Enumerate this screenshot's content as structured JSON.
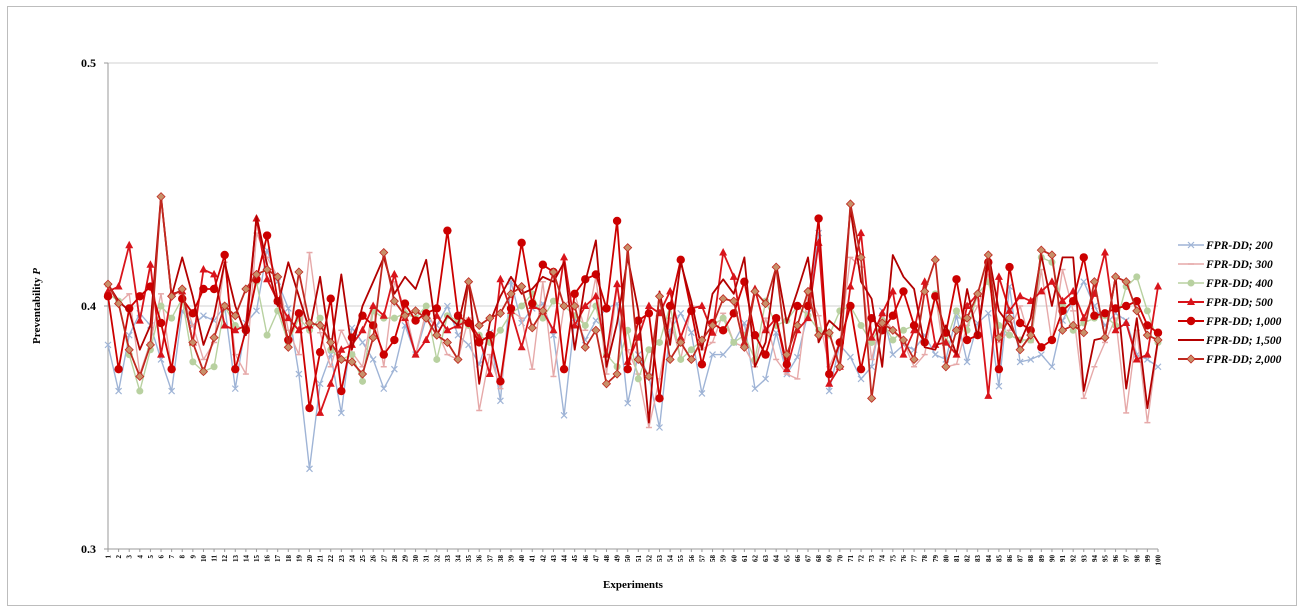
{
  "chart_data": {
    "type": "line",
    "title": "",
    "xlabel": "Experiments",
    "ylabel": "Preventability",
    "ylabel_italic_symbol": "P",
    "ylim": [
      0.3,
      0.5
    ],
    "yticks": [
      "0.3",
      "0.4",
      "0.5"
    ],
    "grid": "horizontal at 0.4 and 0.5",
    "legend_position": "right",
    "x": [
      1,
      2,
      3,
      4,
      5,
      6,
      7,
      8,
      9,
      10,
      11,
      12,
      13,
      14,
      15,
      16,
      17,
      18,
      19,
      20,
      21,
      22,
      23,
      24,
      25,
      26,
      27,
      28,
      29,
      30,
      31,
      32,
      33,
      34,
      35,
      36,
      37,
      38,
      39,
      40,
      41,
      42,
      43,
      44,
      45,
      46,
      47,
      48,
      49,
      50,
      51,
      52,
      53,
      54,
      55,
      56,
      57,
      58,
      59,
      60,
      61,
      62,
      63,
      64,
      65,
      66,
      67,
      68,
      69,
      70,
      71,
      72,
      73,
      74,
      75,
      76,
      77,
      78,
      79,
      80,
      81,
      82,
      83,
      84,
      85,
      86,
      87,
      88,
      89,
      90,
      91,
      92,
      93,
      94,
      95,
      96,
      97,
      98,
      99,
      100
    ],
    "series": [
      {
        "name": "FPR-DD; 200",
        "color": "#9fb4d6",
        "marker": "x",
        "values": [
          0.384,
          0.365,
          0.388,
          0.397,
          0.392,
          0.378,
          0.365,
          0.398,
          0.392,
          0.396,
          0.394,
          0.4,
          0.366,
          0.393,
          0.398,
          0.423,
          0.41,
          0.399,
          0.372,
          0.333,
          0.368,
          0.38,
          0.356,
          0.391,
          0.385,
          0.378,
          0.366,
          0.374,
          0.392,
          0.38,
          0.395,
          0.392,
          0.4,
          0.388,
          0.384,
          0.376,
          0.389,
          0.361,
          0.41,
          0.393,
          0.399,
          0.401,
          0.388,
          0.355,
          0.395,
          0.386,
          0.394,
          0.399,
          0.401,
          0.36,
          0.38,
          0.371,
          0.35,
          0.39,
          0.397,
          0.389,
          0.364,
          0.38,
          0.38,
          0.385,
          0.393,
          0.366,
          0.37,
          0.389,
          0.372,
          0.379,
          0.397,
          0.43,
          0.365,
          0.384,
          0.379,
          0.37,
          0.375,
          0.398,
          0.38,
          0.384,
          0.382,
          0.388,
          0.38,
          0.378,
          0.396,
          0.377,
          0.393,
          0.397,
          0.367,
          0.408,
          0.377,
          0.378,
          0.38,
          0.375,
          0.394,
          0.402,
          0.41,
          0.4,
          0.392,
          0.397,
          0.394,
          0.38,
          0.378,
          0.375
        ]
      },
      {
        "name": "FPR-DD; 300",
        "color": "#e6a9a9",
        "marker": "dash",
        "values": [
          0.408,
          0.401,
          0.405,
          0.372,
          0.385,
          0.405,
          0.374,
          0.405,
          0.392,
          0.378,
          0.385,
          0.418,
          0.38,
          0.372,
          0.43,
          0.42,
          0.412,
          0.39,
          0.38,
          0.422,
          0.389,
          0.375,
          0.39,
          0.381,
          0.375,
          0.4,
          0.375,
          0.41,
          0.399,
          0.38,
          0.398,
          0.39,
          0.38,
          0.378,
          0.395,
          0.357,
          0.38,
          0.366,
          0.398,
          0.395,
          0.374,
          0.41,
          0.371,
          0.4,
          0.405,
          0.39,
          0.412,
          0.372,
          0.408,
          0.382,
          0.372,
          0.35,
          0.37,
          0.395,
          0.378,
          0.4,
          0.382,
          0.385,
          0.397,
          0.385,
          0.383,
          0.375,
          0.395,
          0.378,
          0.372,
          0.37,
          0.405,
          0.396,
          0.375,
          0.385,
          0.42,
          0.416,
          0.378,
          0.396,
          0.39,
          0.385,
          0.375,
          0.38,
          0.405,
          0.375,
          0.376,
          0.392,
          0.4,
          0.413,
          0.385,
          0.39,
          0.4,
          0.385,
          0.415,
          0.385,
          0.415,
          0.398,
          0.362,
          0.375,
          0.385,
          0.395,
          0.356,
          0.39,
          0.352,
          0.385
        ]
      },
      {
        "name": "FPR-DD; 400",
        "color": "#b8d1a0",
        "marker": "circle",
        "values": [
          0.405,
          0.402,
          0.38,
          0.365,
          0.382,
          0.4,
          0.395,
          0.403,
          0.377,
          0.373,
          0.375,
          0.4,
          0.392,
          0.39,
          0.41,
          0.388,
          0.398,
          0.385,
          0.395,
          0.39,
          0.395,
          0.382,
          0.378,
          0.38,
          0.369,
          0.398,
          0.395,
          0.395,
          0.397,
          0.395,
          0.4,
          0.378,
          0.396,
          0.394,
          0.392,
          0.388,
          0.385,
          0.39,
          0.397,
          0.4,
          0.405,
          0.395,
          0.402,
          0.4,
          0.396,
          0.392,
          0.4,
          0.38,
          0.375,
          0.39,
          0.37,
          0.382,
          0.385,
          0.4,
          0.378,
          0.382,
          0.386,
          0.392,
          0.395,
          0.385,
          0.388,
          0.378,
          0.402,
          0.392,
          0.394,
          0.4,
          0.396,
          0.39,
          0.388,
          0.398,
          0.4,
          0.392,
          0.385,
          0.394,
          0.386,
          0.39,
          0.392,
          0.385,
          0.405,
          0.385,
          0.398,
          0.39,
          0.405,
          0.41,
          0.392,
          0.388,
          0.386,
          0.386,
          0.42,
          0.418,
          0.4,
          0.39,
          0.393,
          0.395,
          0.396,
          0.392,
          0.408,
          0.412,
          0.398,
          0.385
        ]
      },
      {
        "name": "FPR-DD; 500",
        "color": "#d9141b",
        "marker": "triangle",
        "values": [
          0.406,
          0.408,
          0.425,
          0.394,
          0.417,
          0.38,
          0.405,
          0.406,
          0.385,
          0.415,
          0.413,
          0.392,
          0.39,
          0.392,
          0.436,
          0.411,
          0.402,
          0.395,
          0.39,
          0.392,
          0.356,
          0.368,
          0.382,
          0.384,
          0.39,
          0.4,
          0.396,
          0.413,
          0.395,
          0.38,
          0.386,
          0.396,
          0.39,
          0.392,
          0.394,
          0.387,
          0.372,
          0.411,
          0.398,
          0.383,
          0.4,
          0.398,
          0.39,
          0.42,
          0.392,
          0.4,
          0.404,
          0.38,
          0.409,
          0.377,
          0.387,
          0.4,
          0.397,
          0.406,
          0.387,
          0.399,
          0.4,
          0.389,
          0.422,
          0.412,
          0.385,
          0.407,
          0.39,
          0.395,
          0.374,
          0.39,
          0.395,
          0.426,
          0.368,
          0.375,
          0.408,
          0.43,
          0.387,
          0.397,
          0.406,
          0.38,
          0.39,
          0.41,
          0.384,
          0.385,
          0.38,
          0.4,
          0.405,
          0.363,
          0.412,
          0.398,
          0.404,
          0.402,
          0.406,
          0.41,
          0.402,
          0.406,
          0.395,
          0.405,
          0.422,
          0.39,
          0.393,
          0.378,
          0.38,
          0.408
        ]
      },
      {
        "name": "FPR-DD; 1,000",
        "color": "#cc0000",
        "marker": "circle",
        "values": [
          0.404,
          0.374,
          0.399,
          0.404,
          0.408,
          0.393,
          0.374,
          0.403,
          0.397,
          0.407,
          0.407,
          0.421,
          0.374,
          0.39,
          0.411,
          0.429,
          0.402,
          0.386,
          0.397,
          0.358,
          0.381,
          0.403,
          0.365,
          0.387,
          0.396,
          0.392,
          0.38,
          0.386,
          0.401,
          0.394,
          0.397,
          0.399,
          0.431,
          0.396,
          0.393,
          0.385,
          0.388,
          0.369,
          0.399,
          0.426,
          0.401,
          0.417,
          0.414,
          0.374,
          0.405,
          0.411,
          0.413,
          0.399,
          0.435,
          0.374,
          0.394,
          0.397,
          0.362,
          0.4,
          0.419,
          0.398,
          0.376,
          0.393,
          0.39,
          0.397,
          0.41,
          0.388,
          0.38,
          0.395,
          0.376,
          0.4,
          0.4,
          0.436,
          0.372,
          0.385,
          0.4,
          0.374,
          0.395,
          0.39,
          0.396,
          0.406,
          0.392,
          0.385,
          0.404,
          0.389,
          0.411,
          0.386,
          0.388,
          0.418,
          0.374,
          0.416,
          0.393,
          0.39,
          0.383,
          0.386,
          0.398,
          0.402,
          0.42,
          0.396,
          0.397,
          0.399,
          0.4,
          0.402,
          0.392,
          0.389
        ]
      },
      {
        "name": "FPR-DD; 1,500",
        "color": "#b30000",
        "marker": "none",
        "values": [
          0.409,
          0.402,
          0.398,
          0.382,
          0.392,
          0.445,
          0.404,
          0.42,
          0.404,
          0.384,
          0.396,
          0.418,
          0.4,
          0.388,
          0.437,
          0.417,
          0.4,
          0.418,
          0.404,
          0.39,
          0.412,
          0.382,
          0.413,
          0.382,
          0.4,
          0.41,
          0.42,
          0.405,
          0.412,
          0.407,
          0.419,
          0.388,
          0.396,
          0.392,
          0.411,
          0.368,
          0.393,
          0.404,
          0.412,
          0.405,
          0.407,
          0.412,
          0.41,
          0.418,
          0.382,
          0.41,
          0.427,
          0.375,
          0.393,
          0.42,
          0.398,
          0.352,
          0.406,
          0.384,
          0.418,
          0.402,
          0.382,
          0.405,
          0.411,
          0.405,
          0.42,
          0.375,
          0.385,
          0.417,
          0.393,
          0.406,
          0.42,
          0.385,
          0.394,
          0.39,
          0.44,
          0.41,
          0.403,
          0.375,
          0.421,
          0.412,
          0.407,
          0.383,
          0.382,
          0.392,
          0.38,
          0.407,
          0.387,
          0.422,
          0.398,
          0.392,
          0.385,
          0.395,
          0.421,
          0.4,
          0.42,
          0.42,
          0.365,
          0.386,
          0.387,
          0.412,
          0.366,
          0.395,
          0.358,
          0.386
        ]
      },
      {
        "name": "FPR-DD; 2,000",
        "color": "#c0281f",
        "marker": "diamond",
        "marker_fill": "#c8906a",
        "values": [
          0.409,
          0.401,
          0.382,
          0.371,
          0.384,
          0.445,
          0.404,
          0.407,
          0.385,
          0.373,
          0.387,
          0.4,
          0.396,
          0.407,
          0.413,
          0.415,
          0.412,
          0.383,
          0.414,
          0.393,
          0.392,
          0.385,
          0.378,
          0.377,
          0.372,
          0.387,
          0.422,
          0.402,
          0.396,
          0.398,
          0.395,
          0.388,
          0.385,
          0.378,
          0.41,
          0.392,
          0.395,
          0.397,
          0.405,
          0.408,
          0.391,
          0.398,
          0.414,
          0.4,
          0.4,
          0.383,
          0.39,
          0.368,
          0.372,
          0.424,
          0.378,
          0.371,
          0.404,
          0.378,
          0.385,
          0.378,
          0.386,
          0.392,
          0.403,
          0.402,
          0.383,
          0.406,
          0.401,
          0.416,
          0.38,
          0.392,
          0.406,
          0.388,
          0.389,
          0.375,
          0.442,
          0.42,
          0.362,
          0.393,
          0.39,
          0.386,
          0.378,
          0.406,
          0.419,
          0.375,
          0.39,
          0.395,
          0.405,
          0.421,
          0.387,
          0.395,
          0.382,
          0.388,
          0.423,
          0.421,
          0.39,
          0.392,
          0.389,
          0.41,
          0.387,
          0.412,
          0.41,
          0.398,
          0.388,
          0.386
        ]
      }
    ]
  }
}
